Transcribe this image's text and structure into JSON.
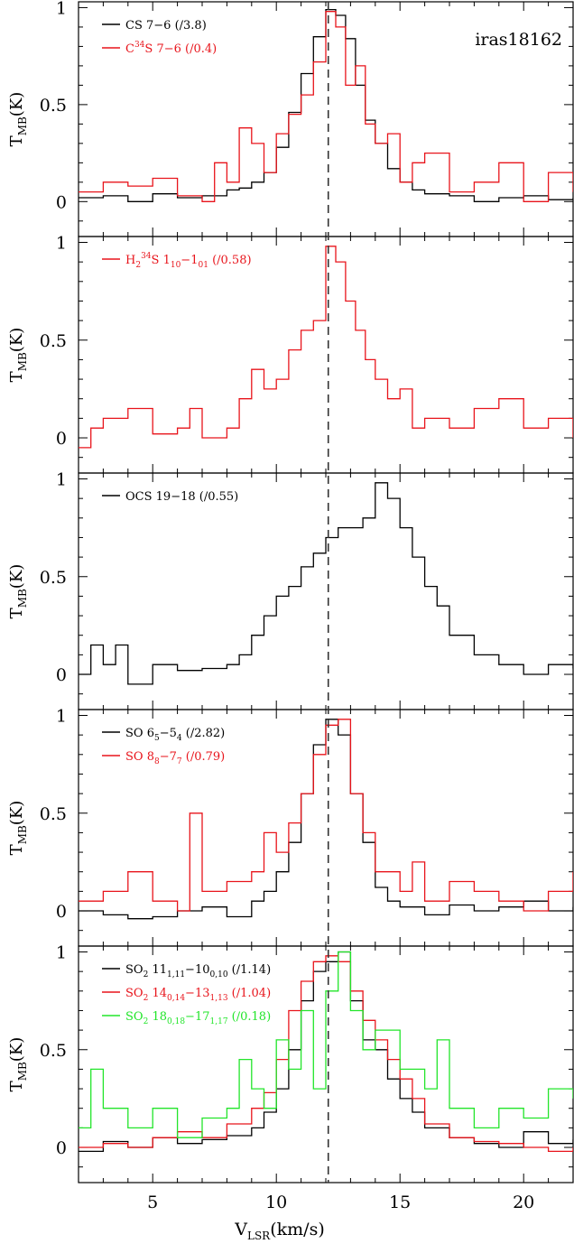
{
  "figure": {
    "source_label": "iras18162",
    "x_label_main": "V",
    "x_label_sub": "LSR",
    "x_label_unit": "(km/s)",
    "y_label_main": "T",
    "y_label_sub": "MB",
    "y_label_unit": "(K)",
    "reference_velocity": 12.1,
    "colors": {
      "black": "#000000",
      "red": "#e8141b",
      "green": "#22e52a",
      "dashed_line": "#333333"
    }
  },
  "chart_data": [
    {
      "type": "line",
      "step": true,
      "xlim": [
        2,
        22
      ],
      "ylim": [
        -0.18,
        1.03
      ],
      "xticks": [
        5,
        10,
        15,
        20
      ],
      "yticks": [
        {
          "v": 0,
          "label": "0"
        },
        {
          "v": 0.5,
          "label": "0.5"
        },
        {
          "v": 1,
          "label": "1"
        }
      ],
      "annotation": "iras18162",
      "legend": [
        {
          "color": "black",
          "parts": [
            [
              "CS 7",
              "n"
            ],
            [
              "−",
              "n"
            ],
            [
              "6 (/3.8)",
              "n"
            ]
          ]
        },
        {
          "color": "red",
          "parts": [
            [
              "C",
              "n"
            ],
            [
              "34",
              "sup"
            ],
            [
              "S 7",
              "n"
            ],
            [
              "−",
              "n"
            ],
            [
              "6 (/0.4)",
              "n"
            ]
          ]
        }
      ],
      "series": [
        {
          "legend": "CS 7-6 (/3.8)",
          "color": "black",
          "x": [
            2.0,
            3.0,
            4.0,
            5.0,
            6.0,
            7.0,
            8.0,
            8.5,
            9.0,
            9.5,
            10.0,
            10.5,
            11.0,
            11.5,
            12.0,
            12.4,
            12.8,
            13.2,
            13.6,
            14.0,
            14.5,
            15.0,
            15.5,
            16.0,
            17.0,
            18.0,
            19.0,
            20.0,
            21.0,
            22.0
          ],
          "y": [
            0.02,
            0.03,
            0.0,
            0.04,
            0.02,
            0.03,
            0.06,
            0.07,
            0.1,
            0.15,
            0.28,
            0.46,
            0.66,
            0.85,
            0.99,
            0.96,
            0.84,
            0.6,
            0.42,
            0.3,
            0.17,
            0.1,
            0.06,
            0.04,
            0.03,
            0.0,
            0.02,
            0.03,
            0.01,
            0.02
          ]
        },
        {
          "legend": "C34S 7-6 (/0.4)",
          "color": "red",
          "x": [
            2.0,
            3.0,
            4.0,
            5.0,
            6.0,
            7.0,
            7.5,
            8.0,
            8.5,
            9.0,
            9.5,
            10.0,
            10.5,
            11.0,
            11.5,
            12.0,
            12.4,
            12.8,
            13.2,
            13.6,
            14.0,
            14.5,
            15.0,
            15.5,
            16.0,
            17.0,
            18.0,
            19.0,
            20.0,
            21.0,
            22.0
          ],
          "y": [
            0.05,
            0.1,
            0.08,
            0.12,
            0.03,
            0.0,
            0.2,
            0.1,
            0.38,
            0.3,
            0.15,
            0.35,
            0.45,
            0.55,
            0.72,
            0.98,
            0.9,
            0.6,
            0.7,
            0.4,
            0.3,
            0.35,
            0.1,
            0.2,
            0.25,
            0.05,
            0.1,
            0.2,
            0.0,
            0.15,
            0.05
          ]
        }
      ]
    },
    {
      "type": "line",
      "step": true,
      "xlim": [
        2,
        22
      ],
      "ylim": [
        -0.18,
        1.03
      ],
      "xticks": [
        5,
        10,
        15,
        20
      ],
      "yticks": [
        {
          "v": 0,
          "label": "0"
        },
        {
          "v": 0.5,
          "label": "0.5"
        },
        {
          "v": 1,
          "label": "1"
        }
      ],
      "legend": [
        {
          "color": "red",
          "parts": [
            [
              "H",
              "n"
            ],
            [
              "2",
              "sub"
            ],
            [
              "34",
              "sup"
            ],
            [
              "S 1",
              "n"
            ],
            [
              "10",
              "sub"
            ],
            [
              "−",
              "n"
            ],
            [
              "1",
              "n"
            ],
            [
              "01",
              "sub"
            ],
            [
              " (/0.58)",
              "n"
            ]
          ]
        }
      ],
      "series": [
        {
          "legend": "H2 34S 1_10-1_01 (/0.58)",
          "color": "red",
          "x": [
            2.0,
            2.5,
            3.0,
            4.0,
            5.0,
            6.0,
            6.5,
            7.0,
            8.0,
            8.5,
            9.0,
            9.5,
            10.0,
            10.5,
            11.0,
            11.5,
            12.0,
            12.4,
            12.8,
            13.2,
            13.6,
            14.0,
            14.5,
            15.0,
            15.5,
            16.0,
            17.0,
            18.0,
            19.0,
            20.0,
            21.0,
            22.0
          ],
          "y": [
            -0.05,
            0.05,
            0.1,
            0.15,
            0.02,
            0.05,
            0.15,
            0.0,
            0.05,
            0.2,
            0.35,
            0.25,
            0.3,
            0.45,
            0.55,
            0.6,
            0.98,
            0.9,
            0.7,
            0.55,
            0.4,
            0.3,
            0.2,
            0.25,
            0.05,
            0.1,
            0.05,
            0.15,
            0.2,
            0.05,
            0.1,
            0.0
          ]
        }
      ]
    },
    {
      "type": "line",
      "step": true,
      "xlim": [
        2,
        22
      ],
      "ylim": [
        -0.18,
        1.03
      ],
      "xticks": [
        5,
        10,
        15,
        20
      ],
      "yticks": [
        {
          "v": 0,
          "label": "0"
        },
        {
          "v": 0.5,
          "label": "0.5"
        },
        {
          "v": 1,
          "label": "1"
        }
      ],
      "legend": [
        {
          "color": "black",
          "parts": [
            [
              "OCS 19",
              "n"
            ],
            [
              "−",
              "n"
            ],
            [
              "18 (/0.55)",
              "n"
            ]
          ]
        }
      ],
      "series": [
        {
          "legend": "OCS 19-18 (/0.55)",
          "color": "black",
          "x": [
            2.0,
            2.5,
            3.0,
            3.5,
            4.0,
            5.0,
            6.0,
            7.0,
            8.0,
            8.5,
            9.0,
            9.5,
            10.0,
            10.5,
            11.0,
            11.5,
            12.0,
            12.5,
            13.0,
            13.5,
            14.0,
            14.5,
            15.0,
            15.5,
            16.0,
            16.5,
            17.0,
            18.0,
            19.0,
            20.0,
            21.0,
            22.0
          ],
          "y": [
            0.0,
            0.15,
            0.05,
            0.15,
            -0.05,
            0.05,
            0.02,
            0.03,
            0.05,
            0.1,
            0.2,
            0.3,
            0.4,
            0.45,
            0.55,
            0.62,
            0.7,
            0.75,
            0.75,
            0.8,
            0.98,
            0.9,
            0.75,
            0.6,
            0.45,
            0.35,
            0.2,
            0.1,
            0.05,
            0.0,
            0.05,
            0.03
          ]
        }
      ]
    },
    {
      "type": "line",
      "step": true,
      "xlim": [
        2,
        22
      ],
      "ylim": [
        -0.18,
        1.03
      ],
      "xticks": [
        5,
        10,
        15,
        20
      ],
      "yticks": [
        {
          "v": 0,
          "label": "0"
        },
        {
          "v": 0.5,
          "label": "0.5"
        },
        {
          "v": 1,
          "label": "1"
        }
      ],
      "legend": [
        {
          "color": "black",
          "parts": [
            [
              "SO 6",
              "n"
            ],
            [
              "5",
              "sub"
            ],
            [
              "−",
              "n"
            ],
            [
              "5",
              "n"
            ],
            [
              "4",
              "sub"
            ],
            [
              " (/2.82)",
              "n"
            ]
          ]
        },
        {
          "color": "red",
          "parts": [
            [
              "SO 8",
              "n"
            ],
            [
              "8",
              "sub"
            ],
            [
              "−",
              "n"
            ],
            [
              "7",
              "n"
            ],
            [
              "7",
              "sub"
            ],
            [
              " (/0.79)",
              "n"
            ]
          ]
        }
      ],
      "series": [
        {
          "legend": "SO 6_5-5_4 (/2.82)",
          "color": "black",
          "x": [
            2.0,
            3.0,
            4.0,
            5.0,
            6.0,
            7.0,
            8.0,
            9.0,
            9.5,
            10.0,
            10.5,
            11.0,
            11.5,
            12.0,
            12.5,
            13.0,
            13.5,
            14.0,
            14.5,
            15.0,
            16.0,
            17.0,
            18.0,
            19.0,
            20.0,
            21.0,
            22.0
          ],
          "y": [
            0.0,
            -0.02,
            -0.04,
            -0.03,
            0.0,
            0.02,
            -0.03,
            0.05,
            0.1,
            0.2,
            0.35,
            0.6,
            0.85,
            0.98,
            0.9,
            0.6,
            0.35,
            0.12,
            0.05,
            0.02,
            -0.02,
            0.03,
            0.0,
            0.02,
            0.05,
            0.0,
            0.02
          ]
        },
        {
          "legend": "SO 8_8-7_7 (/0.79)",
          "color": "red",
          "x": [
            2.0,
            3.0,
            4.0,
            5.0,
            6.0,
            6.5,
            7.0,
            8.0,
            9.0,
            9.5,
            10.0,
            10.5,
            11.0,
            11.5,
            12.0,
            12.5,
            13.0,
            13.5,
            14.0,
            15.0,
            15.5,
            16.0,
            17.0,
            18.0,
            19.0,
            20.0,
            21.0,
            22.0
          ],
          "y": [
            0.05,
            0.1,
            0.2,
            0.05,
            0.0,
            0.5,
            0.1,
            0.15,
            0.2,
            0.4,
            0.3,
            0.45,
            0.6,
            0.8,
            0.95,
            0.98,
            0.6,
            0.4,
            0.2,
            0.1,
            0.25,
            0.05,
            0.15,
            0.1,
            0.05,
            0.0,
            0.1,
            0.2
          ]
        }
      ]
    },
    {
      "type": "line",
      "step": true,
      "xlim": [
        2,
        22
      ],
      "ylim": [
        -0.18,
        1.03
      ],
      "xticks": [
        5,
        10,
        15,
        20
      ],
      "yticks": [
        {
          "v": 0,
          "label": "0"
        },
        {
          "v": 0.5,
          "label": "0.5"
        },
        {
          "v": 1,
          "label": "1"
        }
      ],
      "legend": [
        {
          "color": "black",
          "parts": [
            [
              "SO",
              "n"
            ],
            [
              "2",
              "sub"
            ],
            [
              " 11",
              "n"
            ],
            [
              "1,11",
              "sub"
            ],
            [
              "−",
              "n"
            ],
            [
              "10",
              "n"
            ],
            [
              "0,10",
              "sub"
            ],
            [
              " (/1.14)",
              "n"
            ]
          ]
        },
        {
          "color": "red",
          "parts": [
            [
              "SO",
              "n"
            ],
            [
              "2",
              "sub"
            ],
            [
              " 14",
              "n"
            ],
            [
              "0,14",
              "sub"
            ],
            [
              "−",
              "n"
            ],
            [
              "13",
              "n"
            ],
            [
              "1,13",
              "sub"
            ],
            [
              " (/1.04)",
              "n"
            ]
          ]
        },
        {
          "color": "green",
          "parts": [
            [
              "SO",
              "n"
            ],
            [
              "2",
              "sub"
            ],
            [
              " 18",
              "n"
            ],
            [
              "0,18",
              "sub"
            ],
            [
              "−",
              "n"
            ],
            [
              "17",
              "n"
            ],
            [
              "1,17",
              "sub"
            ],
            [
              " (/0.18)",
              "n"
            ]
          ]
        }
      ],
      "series": [
        {
          "legend": "SO2 11_1,11-10_0,10 (/1.14)",
          "color": "black",
          "x": [
            2.0,
            3.0,
            4.0,
            5.0,
            6.0,
            7.0,
            8.0,
            9.0,
            9.5,
            10.0,
            10.5,
            11.0,
            11.5,
            12.0,
            12.5,
            13.0,
            13.5,
            14.0,
            14.5,
            15.0,
            15.5,
            16.0,
            17.0,
            18.0,
            19.0,
            20.0,
            21.0,
            22.0
          ],
          "y": [
            -0.02,
            0.03,
            0.0,
            0.05,
            0.02,
            0.04,
            0.06,
            0.1,
            0.18,
            0.3,
            0.5,
            0.75,
            0.9,
            0.95,
            1.0,
            0.75,
            0.55,
            0.5,
            0.35,
            0.25,
            0.18,
            0.1,
            0.05,
            0.02,
            0.0,
            0.08,
            0.02,
            0.04
          ]
        },
        {
          "legend": "SO2 14_0,14-13_1,13 (/1.04)",
          "color": "red",
          "x": [
            2.0,
            3.0,
            4.0,
            5.0,
            6.0,
            7.0,
            8.0,
            9.0,
            9.5,
            10.0,
            10.5,
            11.0,
            11.5,
            12.0,
            12.5,
            13.0,
            13.5,
            14.0,
            14.5,
            15.0,
            15.5,
            16.0,
            17.0,
            18.0,
            19.0,
            20.0,
            21.0,
            22.0
          ],
          "y": [
            0.0,
            0.02,
            0.0,
            0.05,
            0.08,
            0.05,
            0.12,
            0.2,
            0.28,
            0.45,
            0.7,
            0.85,
            0.95,
            0.98,
            0.95,
            0.8,
            0.65,
            0.55,
            0.45,
            0.35,
            0.25,
            0.12,
            0.05,
            0.03,
            0.02,
            0.0,
            -0.02,
            0.0
          ]
        },
        {
          "legend": "SO2 18_0,18-17_1,17 (/0.18)",
          "color": "green",
          "x": [
            2.0,
            2.5,
            3.0,
            4.0,
            5.0,
            6.0,
            7.0,
            8.0,
            8.5,
            9.0,
            9.5,
            10.0,
            10.5,
            11.0,
            11.5,
            12.0,
            12.5,
            13.0,
            13.5,
            14.0,
            15.0,
            16.0,
            16.5,
            17.0,
            18.0,
            19.0,
            20.0,
            21.0,
            22.0
          ],
          "y": [
            0.1,
            0.4,
            0.2,
            0.1,
            0.2,
            0.05,
            0.15,
            0.2,
            0.45,
            0.3,
            0.2,
            0.55,
            0.4,
            0.7,
            0.3,
            0.8,
            1.0,
            0.7,
            0.5,
            0.6,
            0.4,
            0.3,
            0.55,
            0.2,
            0.1,
            0.2,
            0.15,
            0.3,
            0.25
          ]
        }
      ]
    }
  ]
}
